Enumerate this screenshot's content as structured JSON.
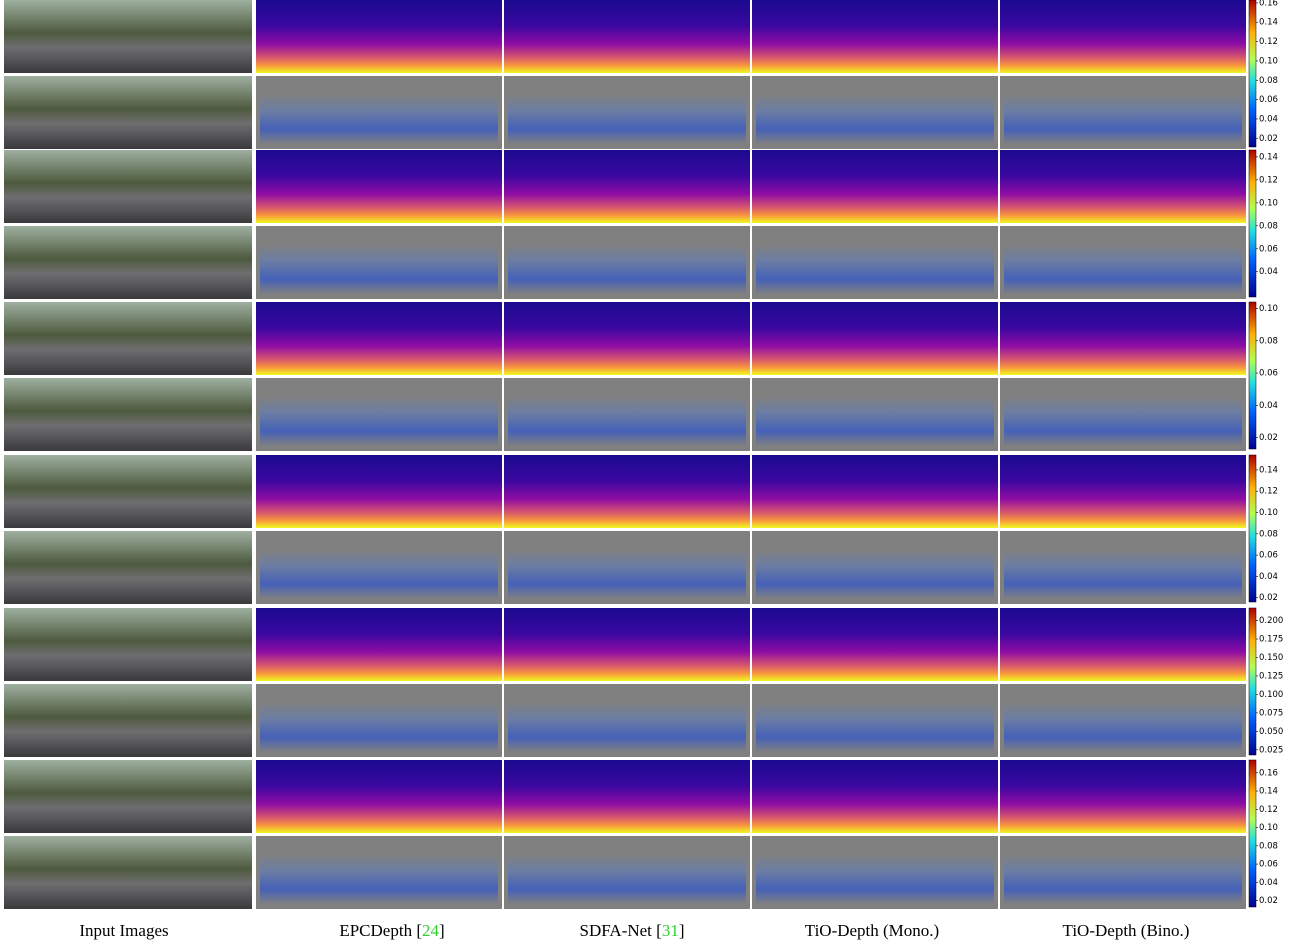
{
  "columns": [
    {
      "label_parts": [
        "Input Images"
      ]
    },
    {
      "label_parts": [
        "EPCDepth [",
        "24",
        "]"
      ]
    },
    {
      "label_parts": [
        "SDFA-Net [",
        "31",
        "]"
      ]
    },
    {
      "label_parts": [
        "TiO-Depth (Mono.)"
      ]
    },
    {
      "label_parts": [
        "TiO-Depth (Bino.)"
      ]
    }
  ],
  "colorbars": [
    {
      "lim": [
        0.011,
        0.163
      ],
      "ticks": [
        {
          "value": 0.16,
          "label": "0.16"
        },
        {
          "value": 0.14,
          "label": "0.14"
        },
        {
          "value": 0.12,
          "label": "0.12"
        },
        {
          "value": 0.1,
          "label": "0.10"
        },
        {
          "value": 0.08,
          "label": "0.08"
        },
        {
          "value": 0.06,
          "label": "0.06"
        },
        {
          "value": 0.04,
          "label": "0.04"
        },
        {
          "value": 0.02,
          "label": "0.02"
        }
      ]
    },
    {
      "lim": [
        0.018,
        0.146
      ],
      "ticks": [
        {
          "value": 0.14,
          "label": "0.14"
        },
        {
          "value": 0.12,
          "label": "0.12"
        },
        {
          "value": 0.1,
          "label": "0.10"
        },
        {
          "value": 0.08,
          "label": "0.08"
        },
        {
          "value": 0.06,
          "label": "0.06"
        },
        {
          "value": 0.04,
          "label": "0.04"
        }
      ]
    },
    {
      "lim": [
        0.013,
        0.104
      ],
      "ticks": [
        {
          "value": 0.1,
          "label": "0.10"
        },
        {
          "value": 0.08,
          "label": "0.08"
        },
        {
          "value": 0.06,
          "label": "0.06"
        },
        {
          "value": 0.04,
          "label": "0.04"
        },
        {
          "value": 0.02,
          "label": "0.02"
        }
      ]
    },
    {
      "lim": [
        0.016,
        0.154
      ],
      "ticks": [
        {
          "value": 0.14,
          "label": "0.14"
        },
        {
          "value": 0.12,
          "label": "0.12"
        },
        {
          "value": 0.1,
          "label": "0.10"
        },
        {
          "value": 0.08,
          "label": "0.08"
        },
        {
          "value": 0.06,
          "label": "0.06"
        },
        {
          "value": 0.04,
          "label": "0.04"
        },
        {
          "value": 0.02,
          "label": "0.02"
        }
      ]
    },
    {
      "lim": [
        0.018,
        0.217
      ],
      "ticks": [
        {
          "value": 0.2,
          "label": "0.200"
        },
        {
          "value": 0.175,
          "label": "0.175"
        },
        {
          "value": 0.15,
          "label": "0.150"
        },
        {
          "value": 0.125,
          "label": "0.125"
        },
        {
          "value": 0.1,
          "label": "0.100"
        },
        {
          "value": 0.075,
          "label": "0.075"
        },
        {
          "value": 0.05,
          "label": "0.050"
        },
        {
          "value": 0.025,
          "label": "0.025"
        }
      ]
    },
    {
      "lim": [
        0.013,
        0.174
      ],
      "ticks": [
        {
          "value": 0.16,
          "label": "0.16"
        },
        {
          "value": 0.14,
          "label": "0.14"
        },
        {
          "value": 0.12,
          "label": "0.12"
        },
        {
          "value": 0.1,
          "label": "0.10"
        },
        {
          "value": 0.08,
          "label": "0.08"
        },
        {
          "value": 0.06,
          "label": "0.06"
        },
        {
          "value": 0.04,
          "label": "0.04"
        },
        {
          "value": 0.02,
          "label": "0.02"
        }
      ]
    }
  ]
}
